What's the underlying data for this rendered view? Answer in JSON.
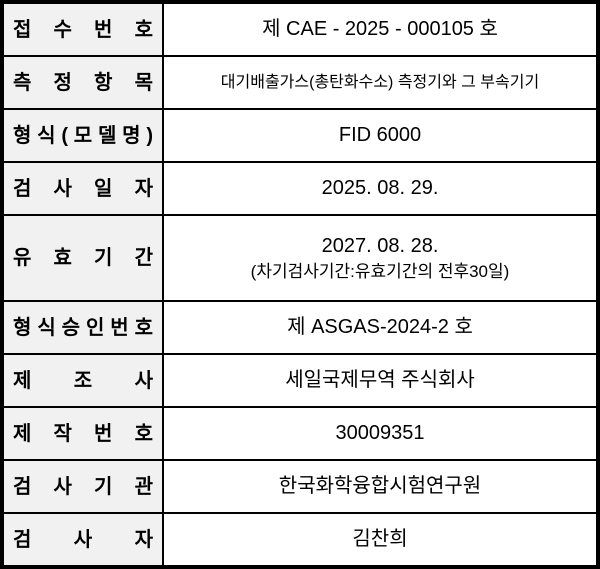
{
  "colors": {
    "border": "#000000",
    "label_background": "#f1f1f1",
    "value_background": "#ffffff",
    "text": "#000000"
  },
  "table": {
    "rows": [
      {
        "label": "접 수 번 호",
        "value": "제 CAE - 2025 - 000105 호"
      },
      {
        "label": "측 정 항 목",
        "value": "대기배출가스(총탄화수소) 측정기와 그 부속기기"
      },
      {
        "label": "형 식 ( 모 델 명 )",
        "value": "FID 6000"
      },
      {
        "label": "검 사 일 자",
        "value": "2025. 08. 29."
      },
      {
        "label": "유 효 기 간",
        "value": "2027. 08. 28.",
        "note": "(차기검사기간:유효기간의 전후30일)"
      },
      {
        "label": "형 식 승 인 번 호",
        "value": "제 ASGAS-2024-2 호"
      },
      {
        "label": "제 조 사",
        "value": "세일국제무역 주식회사"
      },
      {
        "label": "제 작 번 호",
        "value": "30009351"
      },
      {
        "label": "검 사 기 관",
        "value": "한국화학융합시험연구원"
      },
      {
        "label": "검 사 자",
        "value": "김찬희"
      }
    ]
  }
}
